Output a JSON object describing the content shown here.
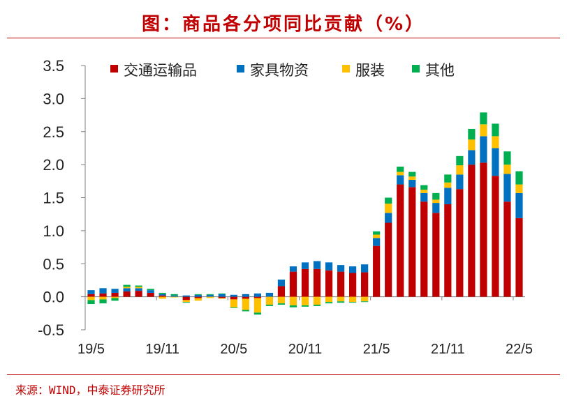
{
  "title": "图：商品各分项同比贡献（%）",
  "source": "来源：WIND，中泰证券研究所",
  "chart_data": {
    "type": "bar",
    "stacked": true,
    "legend_placement": "top",
    "grid": false,
    "ylim": [
      -0.5,
      3.5
    ],
    "yticks": [
      "3.5",
      "3.0",
      "2.5",
      "2.0",
      "1.5",
      "1.0",
      "0.5",
      "0.0",
      "-0.5"
    ],
    "xtick_labels": [
      "19/5",
      "19/11",
      "20/5",
      "20/11",
      "21/5",
      "21/11",
      "22/5"
    ],
    "categories": [
      "19/5",
      "19/6",
      "19/7",
      "19/8",
      "19/9",
      "19/10",
      "19/11",
      "19/12",
      "20/1",
      "20/2",
      "20/3",
      "20/4",
      "20/5",
      "20/6",
      "20/7",
      "20/8",
      "20/9",
      "20/10",
      "20/11",
      "20/12",
      "21/1",
      "21/2",
      "21/3",
      "21/4",
      "21/5",
      "21/6",
      "21/7",
      "21/8",
      "21/9",
      "21/10",
      "21/11",
      "21/12",
      "22/1",
      "22/2",
      "22/3",
      "22/4",
      "22/5"
    ],
    "series": [
      {
        "name": "交通运输品",
        "color": "#c00000",
        "values": [
          0.04,
          0.05,
          0.06,
          0.08,
          0.09,
          0.06,
          0.02,
          0.0,
          -0.05,
          -0.02,
          0.0,
          -0.02,
          -0.04,
          -0.03,
          -0.02,
          0.0,
          0.16,
          0.38,
          0.42,
          0.42,
          0.4,
          0.38,
          0.36,
          0.37,
          0.77,
          1.12,
          1.7,
          1.66,
          1.44,
          1.27,
          1.4,
          1.63,
          2.0,
          2.03,
          1.83,
          1.44,
          1.19
        ]
      },
      {
        "name": "家具物资",
        "color": "#0070c0",
        "values": [
          0.06,
          0.08,
          0.06,
          0.05,
          0.04,
          0.04,
          0.02,
          0.02,
          0.02,
          0.03,
          0.03,
          0.04,
          0.03,
          0.04,
          0.05,
          0.06,
          0.1,
          0.08,
          0.1,
          0.12,
          0.12,
          0.1,
          0.1,
          0.12,
          0.12,
          0.15,
          0.14,
          0.11,
          0.13,
          0.15,
          0.25,
          0.22,
          0.22,
          0.4,
          0.42,
          0.42,
          0.38
        ]
      },
      {
        "name": "服装",
        "color": "#ffc000",
        "values": [
          -0.05,
          -0.04,
          -0.02,
          0.02,
          0.02,
          0.0,
          -0.03,
          -0.01,
          -0.03,
          -0.04,
          -0.02,
          -0.01,
          -0.12,
          -0.17,
          -0.22,
          -0.12,
          -0.1,
          -0.13,
          -0.13,
          -0.12,
          -0.08,
          -0.07,
          -0.08,
          -0.07,
          0.05,
          0.14,
          0.05,
          0.05,
          0.05,
          0.05,
          0.08,
          0.14,
          0.16,
          0.18,
          0.18,
          0.14,
          0.13
        ]
      },
      {
        "name": "其他",
        "color": "#00b050",
        "values": [
          -0.06,
          -0.06,
          -0.04,
          0.03,
          0.02,
          0.02,
          0.02,
          0.02,
          -0.01,
          0.01,
          0.01,
          0.01,
          -0.01,
          -0.02,
          -0.03,
          -0.02,
          -0.02,
          -0.03,
          -0.02,
          -0.02,
          -0.02,
          -0.02,
          -0.01,
          -0.01,
          0.05,
          0.09,
          0.08,
          0.07,
          0.07,
          0.1,
          0.12,
          0.14,
          0.16,
          0.18,
          0.19,
          0.2,
          0.2
        ]
      }
    ]
  }
}
